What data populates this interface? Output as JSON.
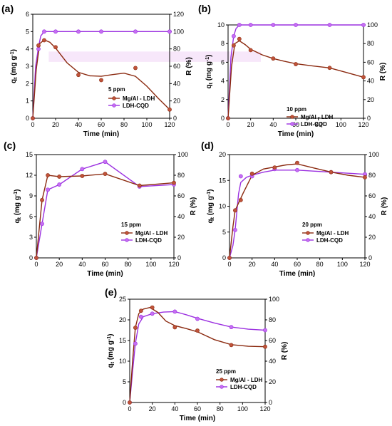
{
  "colors": {
    "mg": "#8b2a10",
    "mg_marker": "#c0533a",
    "cqd": "#9b30e0",
    "cqd_marker": "#c66ef2",
    "band": "#f3ddf8"
  },
  "legend": {
    "mg": "Mg/Al - LDH",
    "cqd": "LDH-CQD"
  },
  "chart_data": [
    {
      "panel": "(a)",
      "type": "line",
      "conc_label": "5 ppm",
      "xlabel": "Time (min)",
      "ylabel_left_main": "q",
      "ylabel_left_sub": "t",
      "ylabel_left_unit": " (mg g",
      "ylabel_left_sup": "-1",
      "ylabel_right": "R (%)",
      "xlim": [
        0,
        120
      ],
      "xticks": [
        0,
        20,
        40,
        60,
        80,
        100,
        120
      ],
      "ylim_left": [
        0,
        6
      ],
      "yticks_left": [
        0,
        1,
        2,
        3,
        4,
        5,
        6
      ],
      "ylim_right": [
        0,
        120
      ],
      "yticks_right": [
        0,
        20,
        40,
        60,
        80,
        100,
        120
      ],
      "series": [
        {
          "name": "Mg/Al - LDH",
          "axis": "left",
          "x": [
            0,
            5,
            10,
            20,
            40,
            60,
            90,
            120
          ],
          "y": [
            0,
            4.2,
            4.5,
            4.1,
            2.5,
            2.2,
            2.9,
            0.5
          ]
        },
        {
          "name": "LDH-CQD",
          "axis": "right",
          "x": [
            0,
            5,
            10,
            20,
            40,
            60,
            90,
            120
          ],
          "y": [
            0,
            80,
            100,
            100,
            100,
            100,
            100,
            100
          ]
        }
      ],
      "curve_mg": [
        [
          0,
          0
        ],
        [
          3,
          2.8
        ],
        [
          6,
          4.3
        ],
        [
          10,
          4.52
        ],
        [
          15,
          4.38
        ],
        [
          20,
          4.05
        ],
        [
          30,
          3.2
        ],
        [
          40,
          2.65
        ],
        [
          50,
          2.45
        ],
        [
          60,
          2.42
        ],
        [
          70,
          2.52
        ],
        [
          80,
          2.6
        ],
        [
          90,
          2.42
        ],
        [
          100,
          1.85
        ],
        [
          110,
          1.15
        ],
        [
          120,
          0.5
        ]
      ],
      "curve_cqd": [
        [
          0,
          0
        ],
        [
          2.5,
          60
        ],
        [
          5,
          82
        ],
        [
          7,
          95
        ],
        [
          10,
          100
        ],
        [
          120,
          100
        ]
      ]
    },
    {
      "panel": "(b)",
      "type": "line",
      "conc_label": "10 ppm",
      "xlabel": "Time (min)",
      "ylabel_left_main": "q",
      "ylabel_left_sub": "t",
      "ylabel_left_unit": " (mg g",
      "ylabel_left_sup": "-1",
      "ylabel_right": "R (%)",
      "xlim": [
        0,
        120
      ],
      "xticks": [
        0,
        20,
        40,
        60,
        80,
        100,
        120
      ],
      "ylim_left": [
        0,
        10
      ],
      "yticks_left": [
        0,
        2,
        4,
        6,
        8,
        10
      ],
      "ylim_right": [
        0,
        100
      ],
      "yticks_right": [
        0,
        20,
        40,
        60,
        80,
        100
      ],
      "series": [
        {
          "name": "Mg/Al - LDH",
          "axis": "left",
          "x": [
            0,
            5,
            10,
            20,
            40,
            60,
            90,
            120
          ],
          "y": [
            0,
            7.8,
            8.5,
            7.3,
            6.4,
            5.8,
            5.4,
            4.4
          ]
        },
        {
          "name": "LDH-CQD",
          "axis": "right",
          "x": [
            0,
            5,
            10,
            20,
            40,
            60,
            90,
            120
          ],
          "y": [
            0,
            88,
            100,
            100,
            100,
            100,
            100,
            100
          ]
        }
      ],
      "curve_mg": [
        [
          0,
          0
        ],
        [
          3,
          5.5
        ],
        [
          6,
          8.0
        ],
        [
          10,
          8.3
        ],
        [
          15,
          7.9
        ],
        [
          20,
          7.4
        ],
        [
          30,
          6.8
        ],
        [
          40,
          6.4
        ],
        [
          50,
          6.1
        ],
        [
          60,
          5.85
        ],
        [
          75,
          5.6
        ],
        [
          90,
          5.4
        ],
        [
          105,
          4.9
        ],
        [
          120,
          4.4
        ]
      ],
      "curve_cqd": [
        [
          0,
          0
        ],
        [
          2.5,
          65
        ],
        [
          5,
          88
        ],
        [
          7,
          96
        ],
        [
          10,
          100
        ],
        [
          120,
          100
        ]
      ]
    },
    {
      "panel": "(c)",
      "type": "line",
      "conc_label": "15 ppm",
      "xlabel": "Time (min)",
      "ylabel_left_main": "q",
      "ylabel_left_sub": "t",
      "ylabel_left_unit": " (mg g",
      "ylabel_left_sup": "-1",
      "ylabel_right": "R (%)",
      "xlim": [
        0,
        120
      ],
      "xticks": [
        0,
        20,
        40,
        60,
        80,
        100,
        120
      ],
      "ylim_left": [
        0,
        15
      ],
      "yticks_left": [
        0,
        3,
        6,
        9,
        12,
        15
      ],
      "ylim_right": [
        0,
        100
      ],
      "yticks_right": [
        0,
        20,
        40,
        60,
        80,
        100
      ],
      "series": [
        {
          "name": "Mg/Al - LDH",
          "axis": "left",
          "x": [
            0,
            5,
            10,
            20,
            40,
            60,
            90,
            120
          ],
          "y": [
            0,
            8.4,
            12.0,
            11.8,
            11.9,
            12.2,
            10.5,
            10.9
          ]
        },
        {
          "name": "LDH-CQD",
          "axis": "right",
          "x": [
            0,
            5,
            10,
            20,
            40,
            60,
            90,
            120
          ],
          "y": [
            0,
            33,
            66,
            71,
            86,
            93,
            69,
            71
          ]
        }
      ],
      "curve_mg": [
        [
          0,
          0
        ],
        [
          5,
          8.4
        ],
        [
          10,
          12.0
        ],
        [
          20,
          11.8
        ],
        [
          40,
          11.9
        ],
        [
          60,
          12.2
        ],
        [
          90,
          10.5
        ],
        [
          120,
          10.9
        ]
      ],
      "curve_cqd": [
        [
          0,
          0
        ],
        [
          5,
          33
        ],
        [
          10,
          66
        ],
        [
          20,
          71
        ],
        [
          40,
          86
        ],
        [
          60,
          93
        ],
        [
          90,
          69
        ],
        [
          120,
          71
        ]
      ]
    },
    {
      "panel": "(d)",
      "type": "line",
      "conc_label": "20 ppm",
      "xlabel": "Time (min)",
      "ylabel_left_main": "q",
      "ylabel_left_sub": "t",
      "ylabel_left_unit": " (mg g",
      "ylabel_left_sup": "-1",
      "ylabel_right": "R (%)",
      "xlim": [
        0,
        120
      ],
      "xticks": [
        0,
        20,
        40,
        60,
        80,
        100,
        120
      ],
      "ylim_left": [
        0,
        20
      ],
      "yticks_left": [
        0,
        5,
        10,
        15,
        20
      ],
      "ylim_right": [
        0,
        100
      ],
      "yticks_right": [
        0,
        20,
        40,
        60,
        80,
        100
      ],
      "series": [
        {
          "name": "Mg/Al - LDH",
          "axis": "left",
          "x": [
            0,
            5,
            10,
            20,
            40,
            60,
            90,
            120
          ],
          "y": [
            0,
            9.2,
            11.2,
            16.3,
            17.5,
            18.4,
            16.6,
            15.6
          ]
        },
        {
          "name": "LDH-CQD",
          "axis": "right",
          "x": [
            0,
            5,
            10,
            20,
            40,
            60,
            90,
            120
          ],
          "y": [
            0,
            27,
            79,
            79,
            86,
            85,
            83,
            81
          ]
        }
      ],
      "curve_mg": [
        [
          0,
          0
        ],
        [
          3,
          6
        ],
        [
          5,
          9.2
        ],
        [
          8,
          10.6
        ],
        [
          12,
          12.5
        ],
        [
          20,
          16.0
        ],
        [
          30,
          17.2
        ],
        [
          40,
          17.6
        ],
        [
          50,
          18.0
        ],
        [
          60,
          18.2
        ],
        [
          75,
          17.4
        ],
        [
          90,
          16.6
        ],
        [
          105,
          16.0
        ],
        [
          120,
          15.6
        ]
      ],
      "curve_cqd": [
        [
          0,
          0
        ],
        [
          3,
          12
        ],
        [
          5,
          27
        ],
        [
          8,
          62
        ],
        [
          10,
          73
        ],
        [
          15,
          78
        ],
        [
          20,
          80
        ],
        [
          30,
          83
        ],
        [
          40,
          85
        ],
        [
          60,
          85
        ],
        [
          90,
          83
        ],
        [
          120,
          81
        ]
      ]
    },
    {
      "panel": "(e)",
      "type": "line",
      "conc_label": "25 ppm",
      "xlabel": "Time (min)",
      "ylabel_left_main": "q",
      "ylabel_left_sub": "t",
      "ylabel_left_unit": " (mg g",
      "ylabel_left_sup": "-1",
      "ylabel_right": "R (%)",
      "xlim": [
        0,
        120
      ],
      "xticks": [
        0,
        20,
        40,
        60,
        80,
        100,
        120
      ],
      "ylim_left": [
        0,
        25
      ],
      "yticks_left": [
        0,
        5,
        10,
        15,
        20,
        25
      ],
      "ylim_right": [
        0,
        100
      ],
      "yticks_right": [
        0,
        20,
        40,
        60,
        80,
        100
      ],
      "series": [
        {
          "name": "Mg/Al - LDH",
          "axis": "left",
          "x": [
            0,
            5,
            10,
            20,
            40,
            60,
            90,
            120
          ],
          "y": [
            0,
            18.1,
            22.2,
            23.0,
            18.2,
            17.4,
            13.9,
            13.5
          ]
        },
        {
          "name": "LDH-CQD",
          "axis": "right",
          "x": [
            0,
            5,
            10,
            20,
            40,
            60,
            90,
            120
          ],
          "y": [
            0,
            57,
            83,
            86,
            88,
            81,
            73,
            70
          ]
        }
      ],
      "curve_mg": [
        [
          0,
          0
        ],
        [
          2.5,
          10
        ],
        [
          5,
          18.1
        ],
        [
          8,
          21.5
        ],
        [
          12,
          22.6
        ],
        [
          18,
          23.0
        ],
        [
          25,
          21.8
        ],
        [
          32,
          19.7
        ],
        [
          40,
          18.6
        ],
        [
          50,
          17.9
        ],
        [
          60,
          17.1
        ],
        [
          75,
          15.2
        ],
        [
          90,
          14.0
        ],
        [
          105,
          13.6
        ],
        [
          120,
          13.5
        ]
      ],
      "curve_cqd": [
        [
          0,
          0
        ],
        [
          2.5,
          30
        ],
        [
          5,
          57
        ],
        [
          8,
          76
        ],
        [
          12,
          83
        ],
        [
          20,
          86
        ],
        [
          30,
          87.5
        ],
        [
          40,
          88
        ],
        [
          50,
          85
        ],
        [
          60,
          81.5
        ],
        [
          75,
          77
        ],
        [
          90,
          73
        ],
        [
          105,
          71
        ],
        [
          120,
          70
        ]
      ]
    }
  ]
}
